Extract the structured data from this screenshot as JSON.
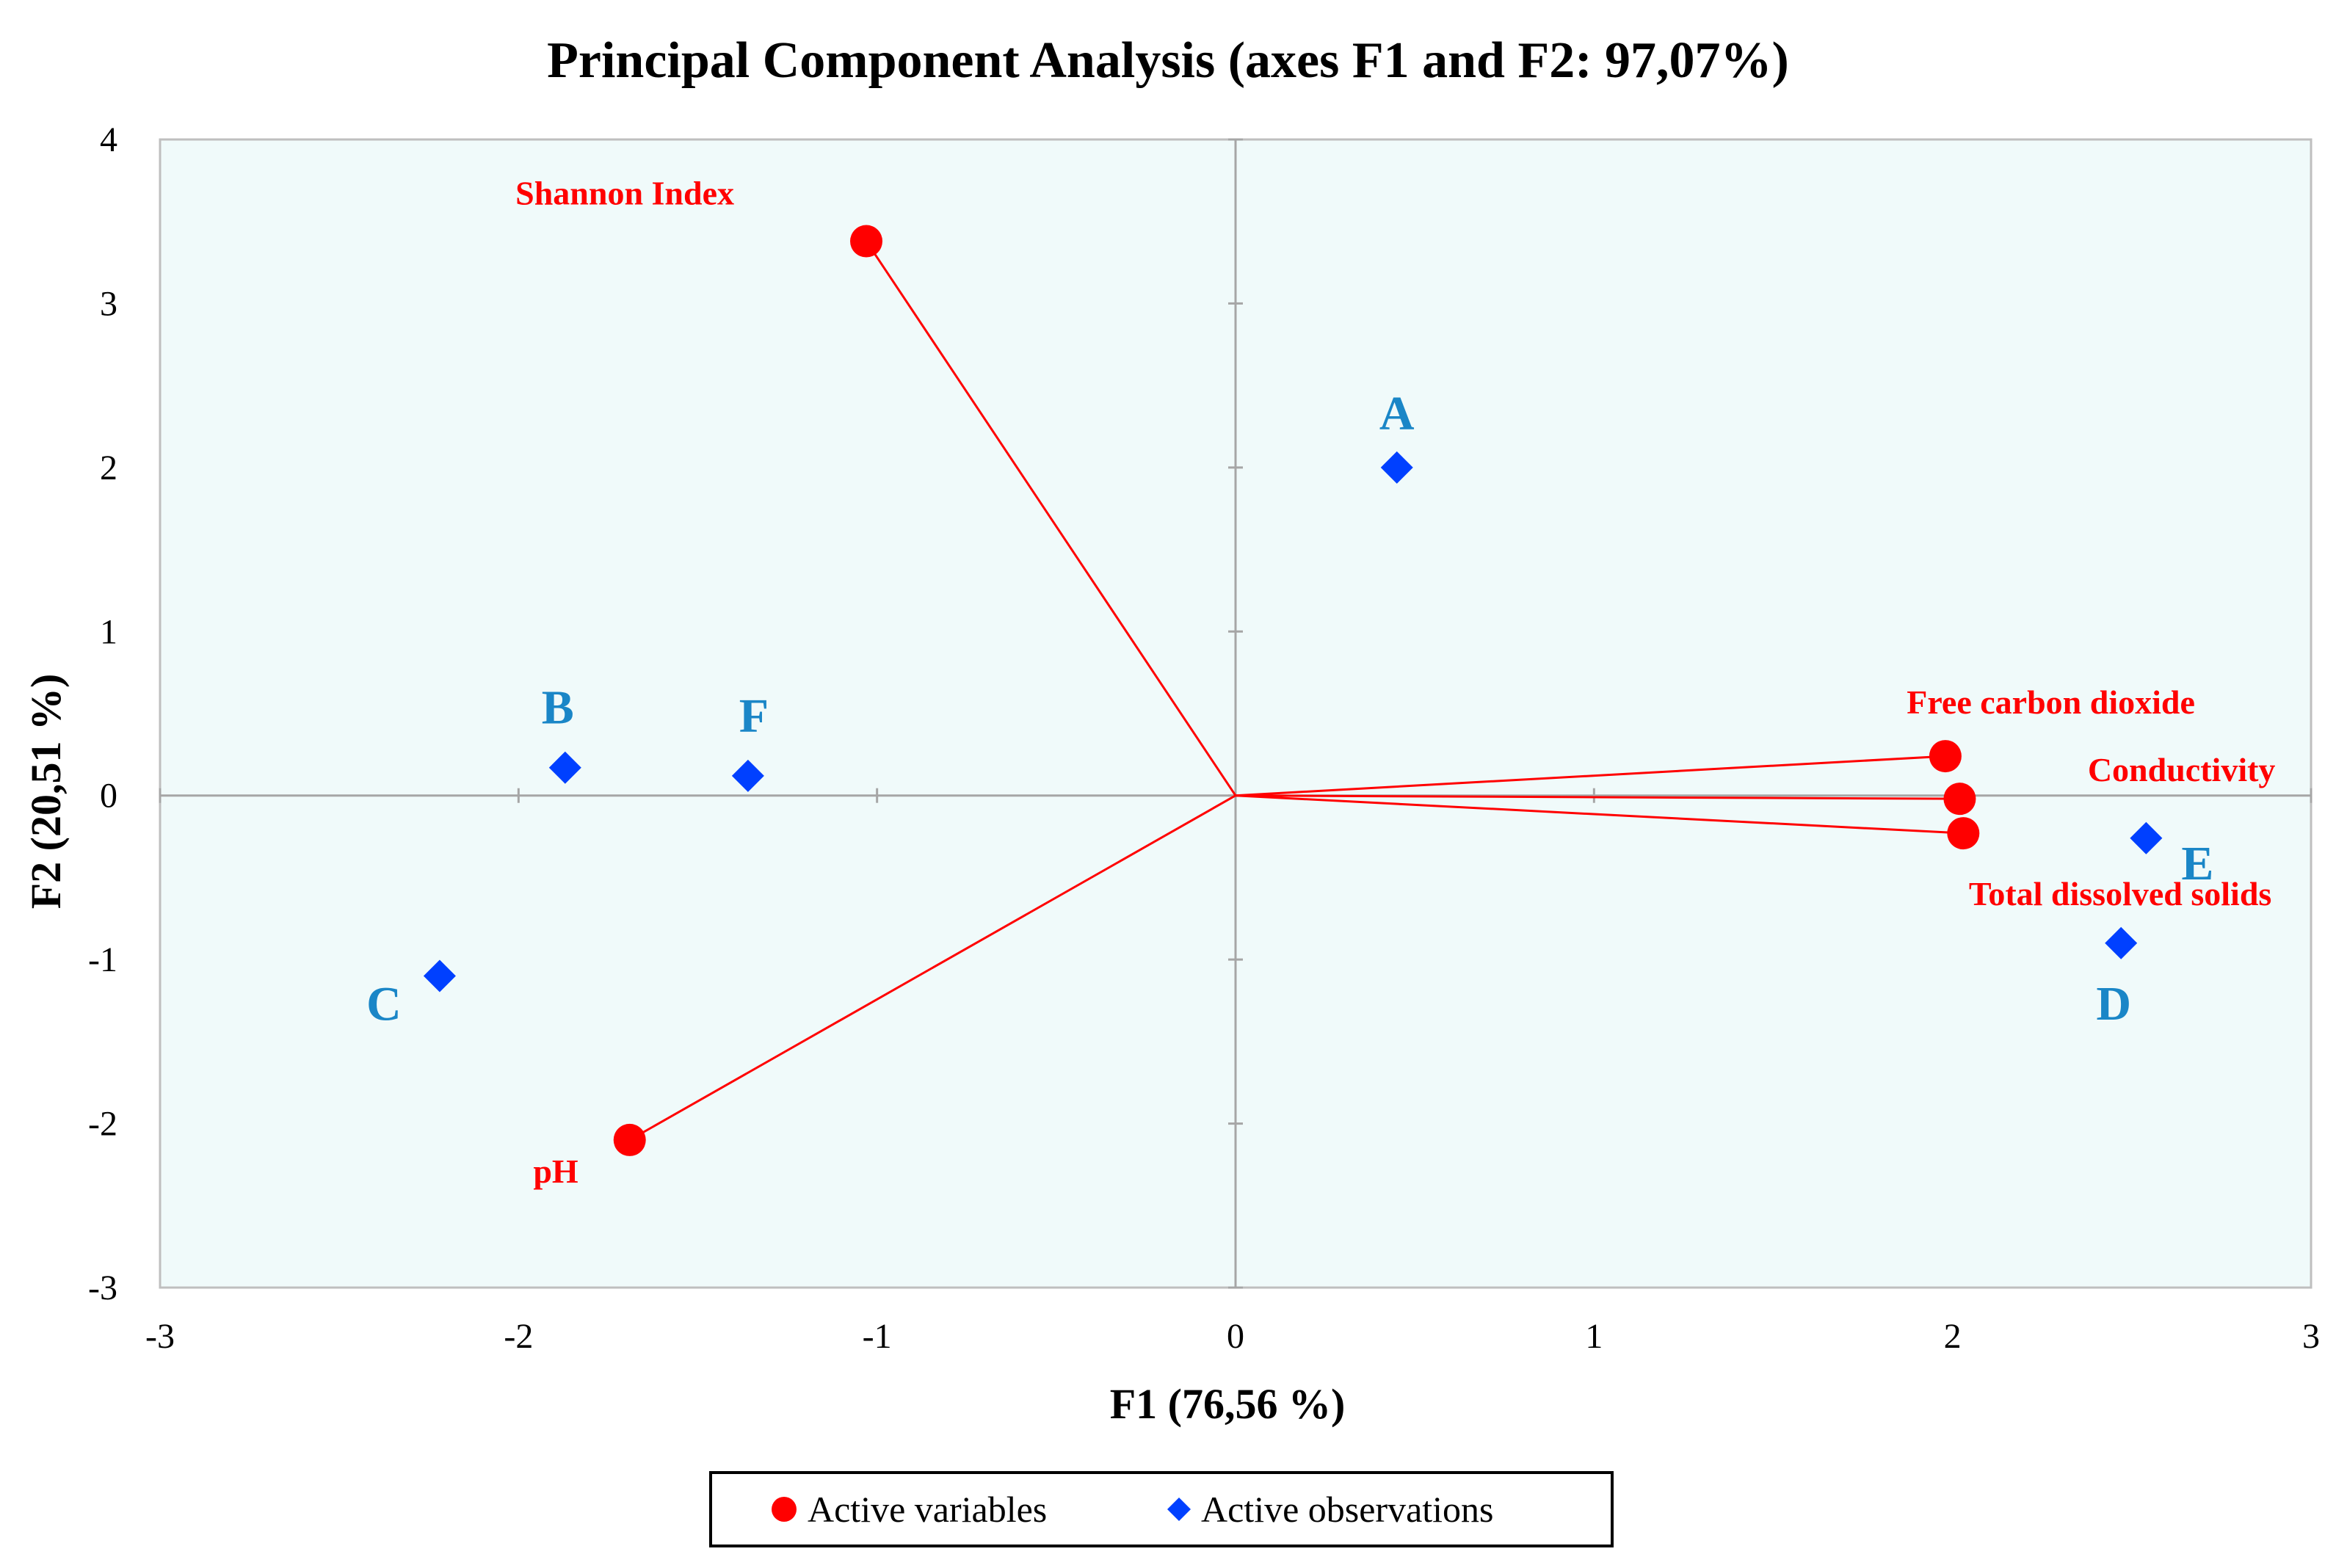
{
  "chart_data": {
    "type": "scatter",
    "title": "Principal Component Analysis (axes F1 and F2: 97,07%)",
    "xlabel": "F1 (76,56 %)",
    "ylabel": "F2 (20,51 %)",
    "xlim": [
      -3,
      3
    ],
    "ylim": [
      -3,
      4
    ],
    "xticks": [
      "-3",
      "-2",
      "-1",
      "0",
      "1",
      "2",
      "3"
    ],
    "yticks": [
      "-3",
      "-2",
      "-1",
      "0",
      "1",
      "2",
      "3",
      "4"
    ],
    "variables_series": {
      "name": "Active variables",
      "color": "#ff0000",
      "points": [
        {
          "label": "Shannon Index",
          "x": -1.03,
          "y": 3.38
        },
        {
          "label": "pH",
          "x": -1.69,
          "y": -2.1
        },
        {
          "label": "Free carbon dioxide",
          "x": 1.98,
          "y": 0.24
        },
        {
          "label": "Conductivity",
          "x": 2.02,
          "y": -0.02
        },
        {
          "label": "Total dissolved solids",
          "x": 2.03,
          "y": -0.23
        }
      ]
    },
    "observations_series": {
      "name": "Active observations",
      "color": "#0040ff",
      "label_color": "#1a86c7",
      "points": [
        {
          "label": "A",
          "x": 0.45,
          "y": 2.0
        },
        {
          "label": "B",
          "x": -1.87,
          "y": 0.17
        },
        {
          "label": "F",
          "x": -1.36,
          "y": 0.12
        },
        {
          "label": "C",
          "x": -2.22,
          "y": -1.1
        },
        {
          "label": "D",
          "x": 2.47,
          "y": -0.9
        },
        {
          "label": "E",
          "x": 2.54,
          "y": -0.26
        }
      ]
    },
    "background_color": "#f0fafa",
    "legend_position": "bottom-center"
  }
}
